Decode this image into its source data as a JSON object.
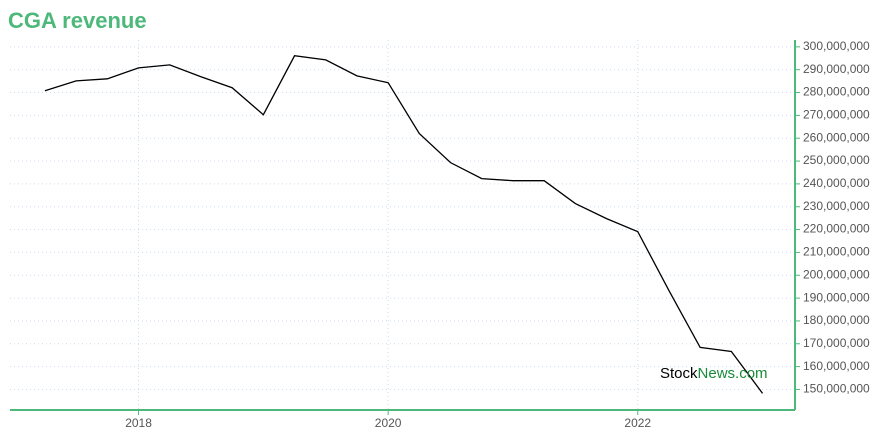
{
  "chart_data": {
    "type": "line",
    "title": "CGA revenue",
    "watermark": [
      "Stock",
      "News.com"
    ],
    "x": [
      2017.25,
      2017.5,
      2017.75,
      2018.0,
      2018.25,
      2018.5,
      2018.75,
      2019.0,
      2019.25,
      2019.5,
      2019.75,
      2020.0,
      2020.25,
      2020.5,
      2020.75,
      2021.0,
      2021.25,
      2021.5,
      2021.75,
      2022.0,
      2022.25,
      2022.5,
      2022.75,
      2023.0
    ],
    "series": [
      {
        "name": "Revenue",
        "color": "#000000",
        "values": [
          280800000,
          285100000,
          286000000,
          290800000,
          292100000,
          286900000,
          282100000,
          270300000,
          296100000,
          294300000,
          287300000,
          284300000,
          262000000,
          249300000,
          242300000,
          241400000,
          241400000,
          231400000,
          224800000,
          219100000,
          193300000,
          168400000,
          166600000,
          148300000
        ]
      }
    ],
    "xlim": [
      2016.97,
      2023.26
    ],
    "xticks": [
      2018,
      2020,
      2022
    ],
    "ylim": [
      141000000,
      303000000
    ],
    "yticks": [
      {
        "value": 150000000,
        "label": "150,000,000"
      },
      {
        "value": 160000000,
        "label": "160,000,000"
      },
      {
        "value": 170000000,
        "label": "170,000,000"
      },
      {
        "value": 180000000,
        "label": "180,000,000"
      },
      {
        "value": 190000000,
        "label": "190,000,000"
      },
      {
        "value": 200000000,
        "label": "200,000,000"
      },
      {
        "value": 210000000,
        "label": "210,000,000"
      },
      {
        "value": 220000000,
        "label": "220,000,000"
      },
      {
        "value": 230000000,
        "label": "230,000,000"
      },
      {
        "value": 240000000,
        "label": "240,000,000"
      },
      {
        "value": 250000000,
        "label": "250,000,000"
      },
      {
        "value": 260000000,
        "label": "260,000,000"
      },
      {
        "value": 270000000,
        "label": "270,000,000"
      },
      {
        "value": 280000000,
        "label": "280,000,000"
      },
      {
        "value": 290000000,
        "label": "290,000,000"
      },
      {
        "value": 300000000,
        "label": "300,000,000"
      }
    ],
    "grid": true,
    "axis_color": "#4db87a"
  }
}
